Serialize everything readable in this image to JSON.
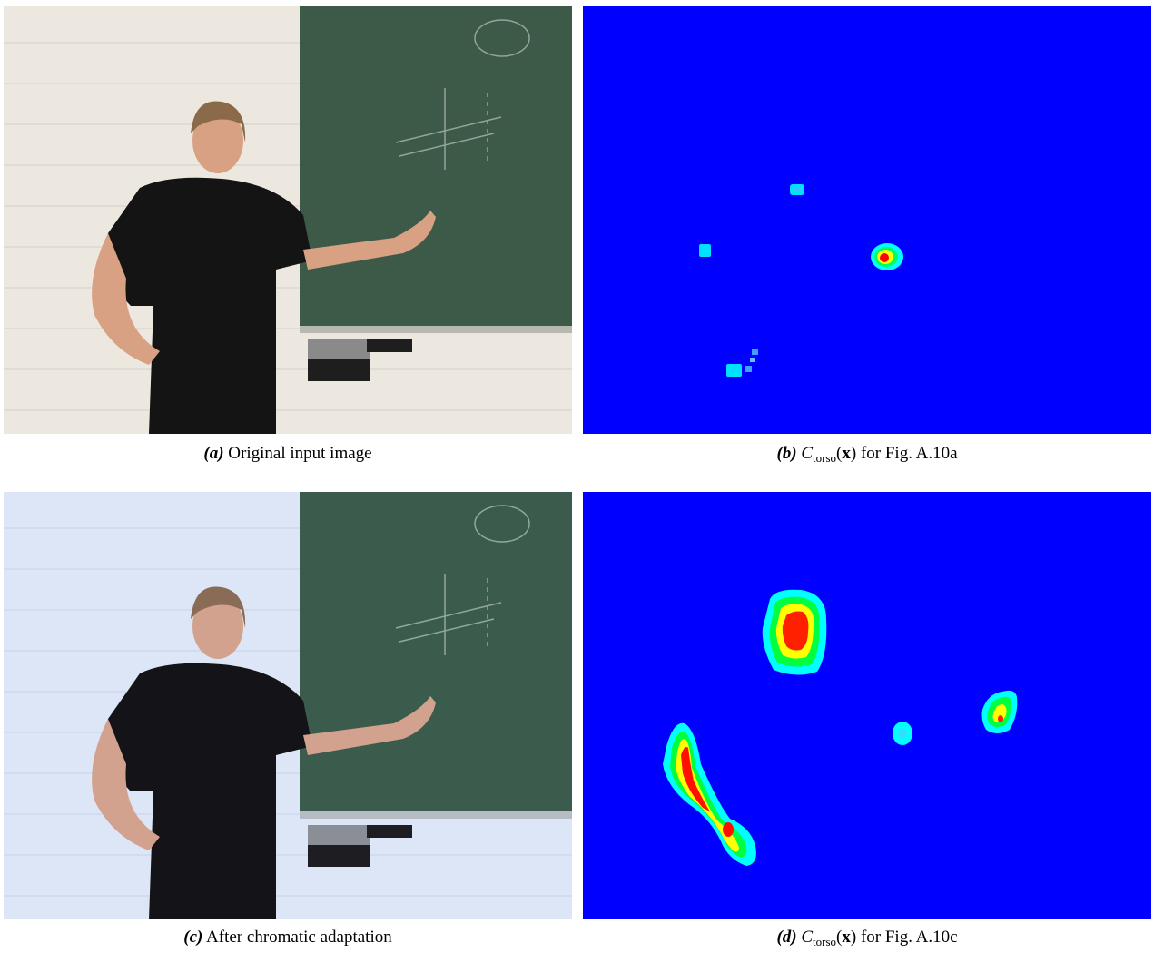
{
  "figure": {
    "panels": [
      {
        "id": "a",
        "label": "(a)",
        "caption": "Original input image",
        "colors": {
          "wall": "#ece8e0",
          "board": "#3d5a48",
          "shirt": "#141414",
          "skin": "#d9a184"
        }
      },
      {
        "id": "b",
        "label": "(b)",
        "symbol": "C",
        "subscript": "torso",
        "argument": "x",
        "caption_suffix": " for Fig. A.10a",
        "colors": {
          "background": "#0000ff",
          "low": "#00ffff",
          "mid": "#ffff00",
          "high": "#ff0000"
        }
      },
      {
        "id": "c",
        "label": "(c)",
        "caption": "After chromatic adaptation",
        "colors": {
          "wall": "#dde6f6",
          "board": "#3b5c4c",
          "shirt": "#141418",
          "skin": "#d2a28e"
        }
      },
      {
        "id": "d",
        "label": "(d)",
        "symbol": "C",
        "subscript": "torso",
        "argument": "x",
        "caption_suffix": " for Fig. A.10c",
        "colors": {
          "background": "#0000ff",
          "low": "#00ffff",
          "mid": "#ffff00",
          "high": "#ff0000"
        }
      }
    ]
  }
}
